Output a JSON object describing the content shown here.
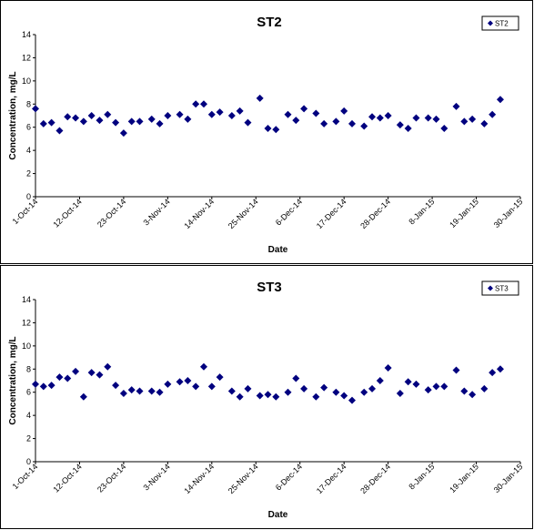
{
  "chart_data": [
    {
      "type": "scatter",
      "title": "ST2",
      "xlabel": "Date",
      "ylabel": "Concentration, mg/L",
      "ylim": [
        0,
        14
      ],
      "y_ticks": [
        0,
        2,
        4,
        6,
        8,
        10,
        12,
        14
      ],
      "x_ticks": [
        "1-Oct-14",
        "12-Oct-14",
        "23-Oct-14",
        "3-Nov-14",
        "14-Nov-14",
        "25-Nov-14",
        "6-Dec-14",
        "17-Dec-14",
        "28-Dec-14",
        "8-Jan-15",
        "19-Jan-15",
        "30-Jan-15"
      ],
      "grid": false,
      "legend_position": "top-right",
      "series": [
        {
          "name": "ST2",
          "color": "#00007F",
          "marker": "diamond",
          "points": [
            [
              "1-Oct-14",
              7.6
            ],
            [
              "3-Oct-14",
              6.3
            ],
            [
              "5-Oct-14",
              6.4
            ],
            [
              "7-Oct-14",
              5.7
            ],
            [
              "9-Oct-14",
              6.9
            ],
            [
              "11-Oct-14",
              6.8
            ],
            [
              "13-Oct-14",
              6.5
            ],
            [
              "15-Oct-14",
              7.0
            ],
            [
              "17-Oct-14",
              6.6
            ],
            [
              "19-Oct-14",
              7.1
            ],
            [
              "21-Oct-14",
              6.4
            ],
            [
              "23-Oct-14",
              5.5
            ],
            [
              "25-Oct-14",
              6.5
            ],
            [
              "27-Oct-14",
              6.5
            ],
            [
              "30-Oct-14",
              6.7
            ],
            [
              "1-Nov-14",
              6.3
            ],
            [
              "3-Nov-14",
              7.0
            ],
            [
              "6-Nov-14",
              7.1
            ],
            [
              "8-Nov-14",
              6.7
            ],
            [
              "10-Nov-14",
              8.0
            ],
            [
              "12-Nov-14",
              8.0
            ],
            [
              "14-Nov-14",
              7.1
            ],
            [
              "16-Nov-14",
              7.3
            ],
            [
              "19-Nov-14",
              7.0
            ],
            [
              "21-Nov-14",
              7.4
            ],
            [
              "23-Nov-14",
              6.4
            ],
            [
              "26-Nov-14",
              8.5
            ],
            [
              "28-Nov-14",
              5.9
            ],
            [
              "30-Nov-14",
              5.8
            ],
            [
              "3-Dec-14",
              7.1
            ],
            [
              "5-Dec-14",
              6.6
            ],
            [
              "7-Dec-14",
              7.6
            ],
            [
              "10-Dec-14",
              7.2
            ],
            [
              "12-Dec-14",
              6.3
            ],
            [
              "15-Dec-14",
              6.5
            ],
            [
              "17-Dec-14",
              7.4
            ],
            [
              "19-Dec-14",
              6.3
            ],
            [
              "22-Dec-14",
              6.1
            ],
            [
              "24-Dec-14",
              6.9
            ],
            [
              "26-Dec-14",
              6.8
            ],
            [
              "28-Dec-14",
              7.0
            ],
            [
              "31-Dec-14",
              6.2
            ],
            [
              "2-Jan-15",
              5.9
            ],
            [
              "4-Jan-15",
              6.8
            ],
            [
              "7-Jan-15",
              6.8
            ],
            [
              "9-Jan-15",
              6.7
            ],
            [
              "11-Jan-15",
              5.9
            ],
            [
              "14-Jan-15",
              7.8
            ],
            [
              "16-Jan-15",
              6.5
            ],
            [
              "18-Jan-15",
              6.7
            ],
            [
              "21-Jan-15",
              6.3
            ],
            [
              "23-Jan-15",
              7.1
            ],
            [
              "25-Jan-15",
              8.4
            ]
          ]
        }
      ]
    },
    {
      "type": "scatter",
      "title": "ST3",
      "xlabel": "Date",
      "ylabel": "Concentration, mg/L",
      "ylim": [
        0,
        14
      ],
      "y_ticks": [
        0,
        2,
        4,
        6,
        8,
        10,
        12,
        14
      ],
      "x_ticks": [
        "1-Oct-14",
        "12-Oct-14",
        "23-Oct-14",
        "3-Nov-14",
        "14-Nov-14",
        "25-Nov-14",
        "6-Dec-14",
        "17-Dec-14",
        "28-Dec-14",
        "8-Jan-15",
        "19-Jan-15",
        "30-Jan-15"
      ],
      "grid": false,
      "legend_position": "top-right",
      "series": [
        {
          "name": "ST3",
          "color": "#00007F",
          "marker": "diamond",
          "points": [
            [
              "1-Oct-14",
              6.7
            ],
            [
              "3-Oct-14",
              6.5
            ],
            [
              "5-Oct-14",
              6.6
            ],
            [
              "7-Oct-14",
              7.3
            ],
            [
              "9-Oct-14",
              7.2
            ],
            [
              "11-Oct-14",
              7.8
            ],
            [
              "13-Oct-14",
              5.6
            ],
            [
              "15-Oct-14",
              7.7
            ],
            [
              "17-Oct-14",
              7.5
            ],
            [
              "19-Oct-14",
              8.2
            ],
            [
              "21-Oct-14",
              6.6
            ],
            [
              "23-Oct-14",
              5.9
            ],
            [
              "25-Oct-14",
              6.2
            ],
            [
              "27-Oct-14",
              6.1
            ],
            [
              "30-Oct-14",
              6.1
            ],
            [
              "1-Nov-14",
              6.0
            ],
            [
              "3-Nov-14",
              6.7
            ],
            [
              "6-Nov-14",
              6.9
            ],
            [
              "8-Nov-14",
              7.0
            ],
            [
              "10-Nov-14",
              6.5
            ],
            [
              "12-Nov-14",
              8.2
            ],
            [
              "14-Nov-14",
              6.5
            ],
            [
              "16-Nov-14",
              7.3
            ],
            [
              "19-Nov-14",
              6.1
            ],
            [
              "21-Nov-14",
              5.6
            ],
            [
              "23-Nov-14",
              6.3
            ],
            [
              "26-Nov-14",
              5.7
            ],
            [
              "28-Nov-14",
              5.8
            ],
            [
              "30-Nov-14",
              5.6
            ],
            [
              "3-Dec-14",
              6.0
            ],
            [
              "5-Dec-14",
              7.2
            ],
            [
              "7-Dec-14",
              6.3
            ],
            [
              "10-Dec-14",
              5.6
            ],
            [
              "12-Dec-14",
              6.4
            ],
            [
              "15-Dec-14",
              6.0
            ],
            [
              "17-Dec-14",
              5.7
            ],
            [
              "19-Dec-14",
              5.3
            ],
            [
              "22-Dec-14",
              6.0
            ],
            [
              "24-Dec-14",
              6.3
            ],
            [
              "26-Dec-14",
              7.0
            ],
            [
              "28-Dec-14",
              8.1
            ],
            [
              "31-Dec-14",
              5.9
            ],
            [
              "2-Jan-15",
              6.9
            ],
            [
              "4-Jan-15",
              6.7
            ],
            [
              "7-Jan-15",
              6.2
            ],
            [
              "9-Jan-15",
              6.5
            ],
            [
              "11-Jan-15",
              6.5
            ],
            [
              "14-Jan-15",
              7.9
            ],
            [
              "16-Jan-15",
              6.1
            ],
            [
              "18-Jan-15",
              5.8
            ],
            [
              "21-Jan-15",
              6.3
            ],
            [
              "23-Jan-15",
              7.7
            ],
            [
              "25-Jan-15",
              8.0
            ]
          ]
        }
      ]
    }
  ]
}
